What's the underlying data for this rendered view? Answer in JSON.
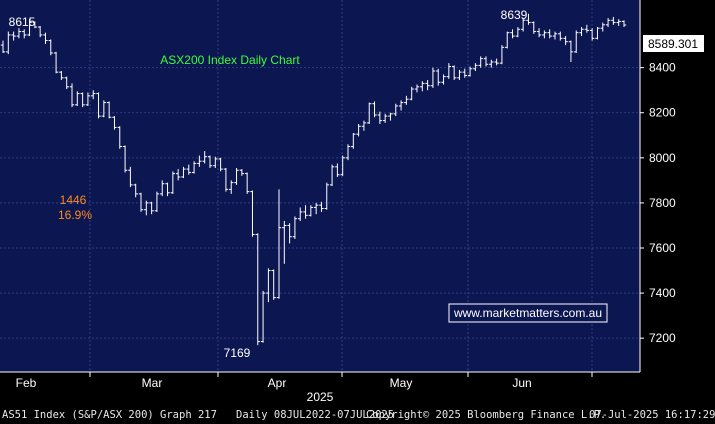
{
  "colors": {
    "plot_bg": "#0c1650",
    "axis_bg": "#000000",
    "grid": "#2f3d86",
    "candle": "#ffffff",
    "title_text": "#3dff3d",
    "annotation_orange": "#ff8a1c",
    "watermark_text": "#ffffff",
    "watermark_border": "#ffffff",
    "last_price_bg": "#ffffff",
    "last_price_text": "#000000"
  },
  "footer": {
    "security": "AS51 Index (S&P/ASX 200) Graph 217",
    "period": "Daily 08JUL2022-07JUL2025",
    "copyright": "Copyright© 2025 Bloomberg Finance L.P.",
    "timestamp": "07-Jul-2025 16:17:29"
  },
  "chart_data": {
    "type": "candlestick",
    "title": "ASX200 Index Daily Chart",
    "watermark": "www.marketmatters.com.au",
    "year_label": "2025",
    "x_ticks": [
      "Feb",
      "Mar",
      "Apr",
      "May",
      "Jun"
    ],
    "y_ticks": [
      7200,
      7400,
      7600,
      7800,
      8000,
      8200,
      8400
    ],
    "ylim": [
      7050,
      8700
    ],
    "last_price": "8589.301",
    "grid": true,
    "annotations": {
      "high_start": "8615",
      "low": "7169",
      "high_end": "8639",
      "drop_points": "1446",
      "drop_pct": "16.9%"
    },
    "ohlc": [
      [
        8500,
        8520,
        8465,
        8470
      ],
      [
        8470,
        8560,
        8460,
        8545
      ],
      [
        8545,
        8560,
        8520,
        8540
      ],
      [
        8540,
        8575,
        8530,
        8560
      ],
      [
        8560,
        8570,
        8530,
        8545
      ],
      [
        8545,
        8615,
        8540,
        8600
      ],
      [
        8600,
        8605,
        8575,
        8580
      ],
      [
        8580,
        8585,
        8535,
        8545
      ],
      [
        8545,
        8555,
        8505,
        8520
      ],
      [
        8520,
        8525,
        8455,
        8465
      ],
      [
        8465,
        8470,
        8375,
        8380
      ],
      [
        8380,
        8385,
        8345,
        8355
      ],
      [
        8355,
        8360,
        8305,
        8315
      ],
      [
        8315,
        8330,
        8225,
        8235
      ],
      [
        8235,
        8295,
        8230,
        8285
      ],
      [
        8285,
        8290,
        8225,
        8235
      ],
      [
        8235,
        8290,
        8230,
        8275
      ],
      [
        8275,
        8300,
        8260,
        8285
      ],
      [
        8285,
        8290,
        8175,
        8185
      ],
      [
        8185,
        8255,
        8180,
        8245
      ],
      [
        8245,
        8250,
        8175,
        8180
      ],
      [
        8180,
        8185,
        8125,
        8135
      ],
      [
        8135,
        8140,
        8040,
        8050
      ],
      [
        8050,
        8055,
        7935,
        7945
      ],
      [
        7945,
        7960,
        7870,
        7880
      ],
      [
        7880,
        7885,
        7825,
        7840
      ],
      [
        7840,
        7845,
        7760,
        7770
      ],
      [
        7770,
        7810,
        7745,
        7800
      ],
      [
        7800,
        7805,
        7750,
        7765
      ],
      [
        7765,
        7850,
        7760,
        7840
      ],
      [
        7840,
        7900,
        7830,
        7885
      ],
      [
        7885,
        7890,
        7830,
        7845
      ],
      [
        7845,
        7940,
        7840,
        7930
      ],
      [
        7930,
        7950,
        7900,
        7915
      ],
      [
        7915,
        7960,
        7910,
        7950
      ],
      [
        7950,
        7970,
        7925,
        7935
      ],
      [
        7935,
        7985,
        7930,
        7975
      ],
      [
        7975,
        8010,
        7960,
        7985
      ],
      [
        7985,
        8030,
        7975,
        8005
      ],
      [
        8005,
        8010,
        7955,
        7965
      ],
      [
        7965,
        8005,
        7955,
        7995
      ],
      [
        7995,
        8000,
        7940,
        7950
      ],
      [
        7950,
        7955,
        7850,
        7860
      ],
      [
        7860,
        7900,
        7840,
        7890
      ],
      [
        7890,
        7955,
        7880,
        7945
      ],
      [
        7945,
        7950,
        7920,
        7930
      ],
      [
        7930,
        7935,
        7840,
        7850
      ],
      [
        7850,
        7855,
        7650,
        7660
      ],
      [
        7660,
        7665,
        7169,
        7185
      ],
      [
        7185,
        7410,
        7180,
        7400
      ],
      [
        7400,
        7510,
        7360,
        7500
      ],
      [
        7500,
        7505,
        7370,
        7380
      ],
      [
        7380,
        7860,
        7375,
        7690
      ],
      [
        7690,
        7720,
        7530,
        7700
      ],
      [
        7700,
        7710,
        7620,
        7650
      ],
      [
        7650,
        7740,
        7640,
        7730
      ],
      [
        7730,
        7780,
        7720,
        7760
      ],
      [
        7760,
        7790,
        7730,
        7745
      ],
      [
        7745,
        7790,
        7740,
        7780
      ],
      [
        7780,
        7800,
        7750,
        7790
      ],
      [
        7790,
        7805,
        7760,
        7775
      ],
      [
        7775,
        7890,
        7770,
        7880
      ],
      [
        7880,
        7970,
        7875,
        7960
      ],
      [
        7960,
        7975,
        7915,
        7925
      ],
      [
        7925,
        8010,
        7920,
        8000
      ],
      [
        8000,
        8060,
        7990,
        8050
      ],
      [
        8050,
        8110,
        8040,
        8105
      ],
      [
        8105,
        8150,
        8095,
        8140
      ],
      [
        8140,
        8165,
        8120,
        8155
      ],
      [
        8155,
        8245,
        8150,
        8240
      ],
      [
        8240,
        8250,
        8180,
        8190
      ],
      [
        8190,
        8205,
        8150,
        8165
      ],
      [
        8165,
        8195,
        8155,
        8185
      ],
      [
        8185,
        8200,
        8165,
        8195
      ],
      [
        8195,
        8240,
        8185,
        8230
      ],
      [
        8230,
        8255,
        8210,
        8245
      ],
      [
        8245,
        8275,
        8235,
        8260
      ],
      [
        8260,
        8315,
        8255,
        8305
      ],
      [
        8305,
        8325,
        8290,
        8315
      ],
      [
        8315,
        8340,
        8295,
        8330
      ],
      [
        8330,
        8345,
        8300,
        8320
      ],
      [
        8320,
        8400,
        8310,
        8385
      ],
      [
        8385,
        8395,
        8320,
        8335
      ],
      [
        8335,
        8370,
        8325,
        8360
      ],
      [
        8360,
        8420,
        8350,
        8405
      ],
      [
        8405,
        8410,
        8345,
        8355
      ],
      [
        8355,
        8390,
        8345,
        8380
      ],
      [
        8380,
        8395,
        8355,
        8365
      ],
      [
        8365,
        8405,
        8360,
        8395
      ],
      [
        8395,
        8420,
        8385,
        8410
      ],
      [
        8410,
        8450,
        8400,
        8440
      ],
      [
        8440,
        8450,
        8405,
        8415
      ],
      [
        8415,
        8435,
        8400,
        8425
      ],
      [
        8425,
        8440,
        8410,
        8420
      ],
      [
        8420,
        8500,
        8415,
        8490
      ],
      [
        8490,
        8560,
        8485,
        8555
      ],
      [
        8555,
        8570,
        8530,
        8540
      ],
      [
        8540,
        8580,
        8535,
        8570
      ],
      [
        8570,
        8620,
        8560,
        8610
      ],
      [
        8610,
        8639,
        8590,
        8600
      ],
      [
        8600,
        8605,
        8550,
        8560
      ],
      [
        8560,
        8575,
        8535,
        8545
      ],
      [
        8545,
        8565,
        8530,
        8555
      ],
      [
        8555,
        8570,
        8530,
        8540
      ],
      [
        8540,
        8560,
        8525,
        8550
      ],
      [
        8550,
        8560,
        8520,
        8530
      ],
      [
        8530,
        8540,
        8500,
        8515
      ],
      [
        8515,
        8520,
        8425,
        8470
      ],
      [
        8470,
        8565,
        8465,
        8555
      ],
      [
        8555,
        8580,
        8540,
        8570
      ],
      [
        8570,
        8590,
        8555,
        8565
      ],
      [
        8565,
        8575,
        8520,
        8530
      ],
      [
        8530,
        8580,
        8525,
        8575
      ],
      [
        8575,
        8600,
        8560,
        8590
      ],
      [
        8590,
        8620,
        8580,
        8610
      ],
      [
        8610,
        8625,
        8590,
        8600
      ],
      [
        8600,
        8615,
        8585,
        8605
      ],
      [
        8605,
        8610,
        8580,
        8589
      ]
    ]
  }
}
